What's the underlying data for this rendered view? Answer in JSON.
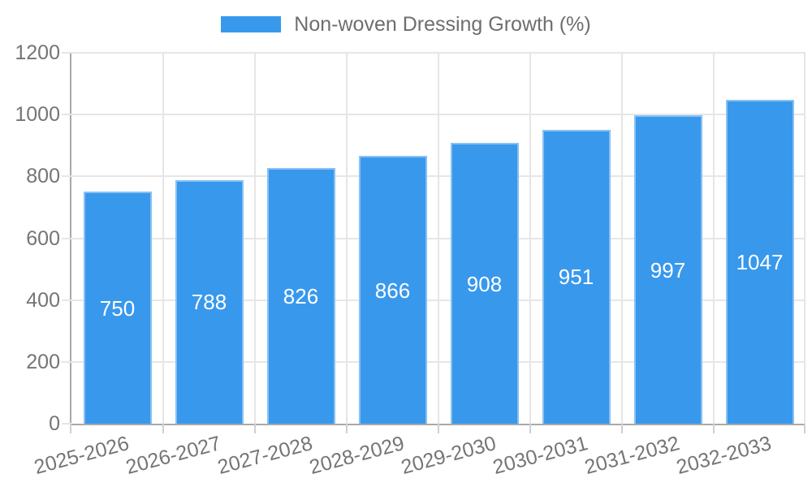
{
  "legend": {
    "label": "Non-woven Dressing Growth (%)"
  },
  "chart_data": {
    "type": "bar",
    "title": "Non-woven Dressing Growth (%)",
    "categories": [
      "2025-2026",
      "2026-2027",
      "2027-2028",
      "2028-2029",
      "2029-2030",
      "2030-2031",
      "2031-2032",
      "2032-2033"
    ],
    "values": [
      750,
      788,
      826,
      866,
      908,
      951,
      997,
      1047
    ],
    "xlabel": "",
    "ylabel": "",
    "ylim": [
      0,
      1200
    ],
    "yticks": [
      0,
      200,
      400,
      600,
      800,
      1000,
      1200
    ],
    "grid": true,
    "legend_position": "top",
    "value_label_position": "inside-center",
    "x_label_rotation_deg": -15
  },
  "colors": {
    "bar_fill": "#3898ec",
    "bar_border": "rgba(255,255,255,0.4)",
    "gridline": "#e6e6e6",
    "axis_line": "#a9a9a9",
    "tick_text": "#757575",
    "legend_text": "#6e6e6e",
    "value_label_text": "#ffffff",
    "background": "#ffffff"
  }
}
